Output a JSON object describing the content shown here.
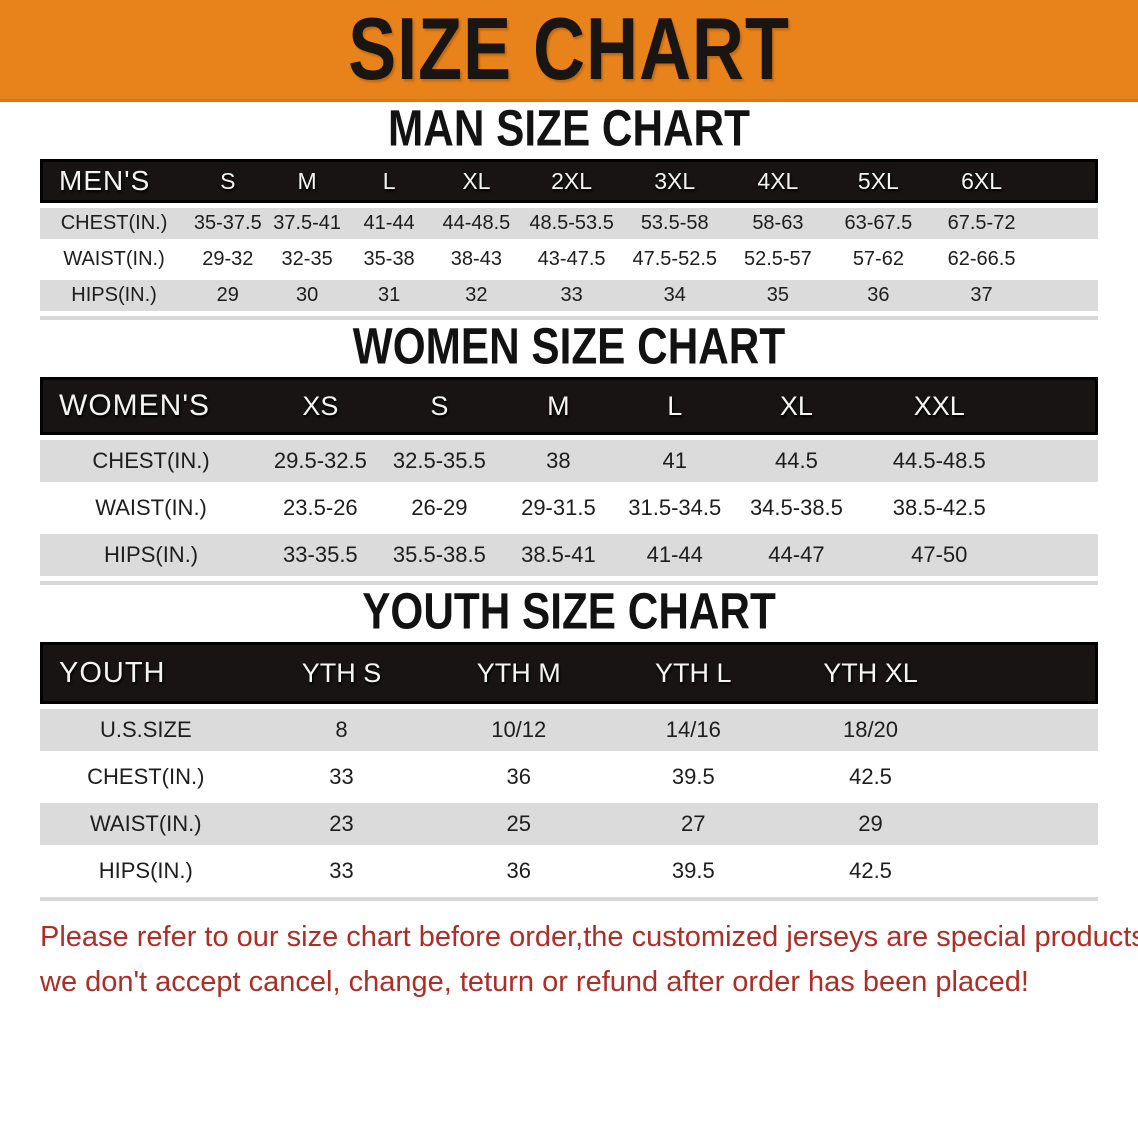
{
  "banner": {
    "title": "SIZE CHART"
  },
  "colors": {
    "banner_orange": "#E8831C",
    "header_black": "#171413",
    "row_gray": "#DBDBDB",
    "disclaimer_red": "#AE2E26"
  },
  "sections": [
    {
      "id": "men",
      "heading": "MAN SIZE CHART",
      "table": {
        "title": "MEN'S",
        "sizes": [
          "S",
          "M",
          "L",
          "XL",
          "2XL",
          "3XL",
          "4XL",
          "5XL",
          "6XL"
        ],
        "rows": [
          {
            "label": "CHEST(IN.)",
            "values": [
              "35-37.5",
              "37.5-41",
              "41-44",
              "44-48.5",
              "48.5-53.5",
              "53.5-58",
              "58-63",
              "63-67.5",
              "67.5-72"
            ]
          },
          {
            "label": "WAIST(IN.)",
            "values": [
              "29-32",
              "32-35",
              "35-38",
              "38-43",
              "43-47.5",
              "47.5-52.5",
              "52.5-57",
              "57-62",
              "62-66.5"
            ]
          },
          {
            "label": "HIPS(IN.)",
            "values": [
              "29",
              "30",
              "31",
              "32",
              "33",
              "34",
              "35",
              "36",
              "37"
            ]
          }
        ]
      }
    },
    {
      "id": "women",
      "heading": "WOMEN SIZE CHART",
      "table": {
        "title": "WOMEN'S",
        "sizes": [
          "XS",
          "S",
          "M",
          "L",
          "XL",
          "XXL"
        ],
        "rows": [
          {
            "label": "CHEST(IN.)",
            "values": [
              "29.5-32.5",
              "32.5-35.5",
              "38",
              "41",
              "44.5",
              "44.5-48.5"
            ]
          },
          {
            "label": "WAIST(IN.)",
            "values": [
              "23.5-26",
              "26-29",
              "29-31.5",
              "31.5-34.5",
              "34.5-38.5",
              "38.5-42.5"
            ]
          },
          {
            "label": "HIPS(IN.)",
            "values": [
              "33-35.5",
              "35.5-38.5",
              "38.5-41",
              "41-44",
              "44-47",
              "47-50"
            ]
          }
        ]
      }
    },
    {
      "id": "youth",
      "heading": "YOUTH SIZE CHART",
      "table": {
        "title": "YOUTH",
        "sizes": [
          "YTH S",
          "YTH M",
          "YTH L",
          "YTH XL"
        ],
        "rows": [
          {
            "label": "U.S.SIZE",
            "values": [
              "8",
              "10/12",
              "14/16",
              "18/20"
            ]
          },
          {
            "label": "CHEST(IN.)",
            "values": [
              "33",
              "36",
              "39.5",
              "42.5"
            ]
          },
          {
            "label": "WAIST(IN.)",
            "values": [
              "23",
              "25",
              "27",
              "29"
            ]
          },
          {
            "label": "HIPS(IN.)",
            "values": [
              "33",
              "36",
              "39.5",
              "42.5"
            ]
          }
        ]
      }
    }
  ],
  "disclaimer": {
    "line1": "Please refer to our size chart before order,the customized jerseys are special products,",
    "line2": "we don't accept cancel, change, teturn or refund after order has been placed!"
  }
}
